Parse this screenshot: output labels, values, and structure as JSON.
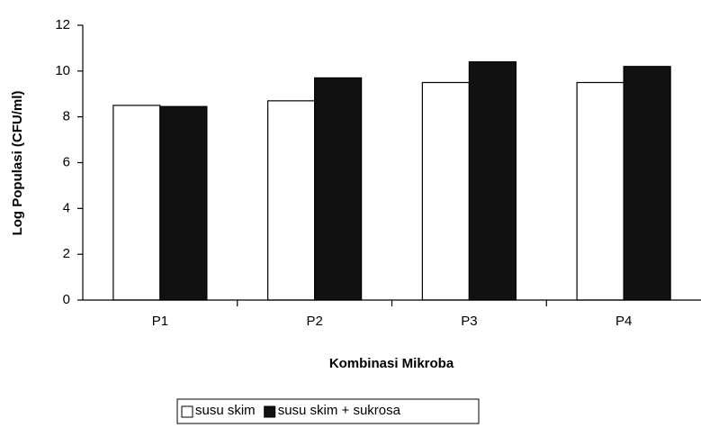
{
  "chart_data": {
    "type": "bar",
    "categories": [
      "P1",
      "P2",
      "P3",
      "P4"
    ],
    "series": [
      {
        "name": "susu skim",
        "color": "#ffffff",
        "values": [
          8.5,
          8.7,
          9.5,
          9.5
        ]
      },
      {
        "name": "susu skim + sukrosa",
        "color": "#111111",
        "values": [
          8.45,
          9.7,
          10.4,
          10.2
        ]
      }
    ],
    "ylim": [
      0,
      12
    ],
    "yticks": [
      0,
      2,
      4,
      6,
      8,
      10,
      12
    ],
    "ylabel": "Log Populasi (CFU/ml)",
    "xlabel": "Kombinasi Mikroba",
    "legend": "bottom"
  }
}
